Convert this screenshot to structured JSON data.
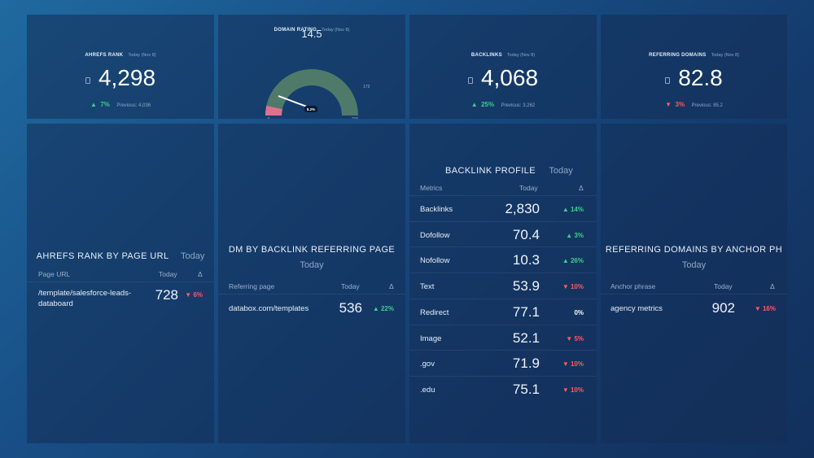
{
  "ahrefs_rank": {
    "title": "AHREFS RANK",
    "period": "Today (Nov 8)",
    "value": "4,298",
    "change": "7%",
    "change_direction": "up",
    "previous": "Previous: 4,036"
  },
  "domain_rating": {
    "title": "DOMAIN RATING",
    "period": "Today (Nov 8)",
    "value": "14.5",
    "gauge_min": "0",
    "gauge_max": "215",
    "gauge_mark": "173",
    "gauge_fill": 0.0674,
    "pointer_label": "8.2%"
  },
  "backlinks": {
    "title": "BACKLINKS",
    "period": "Today (Nov 8)",
    "value": "4,068",
    "change": "25%",
    "change_direction": "up",
    "previous": "Previous: 3,262"
  },
  "referring_domains": {
    "title": "REFERRING DOMAINS",
    "period": "Today (Nov 8)",
    "value": "82.8",
    "change": "3%",
    "change_direction": "down",
    "previous": "Previous: 85.2"
  },
  "rank_by_page": {
    "title": "AHREFS RANK BY PAGE URL",
    "period": "Today",
    "col1": "Page URL",
    "col2": "Today",
    "col3": "Δ",
    "rows": [
      {
        "label1": "/template/salesforce-leads-",
        "label2": "databoard",
        "value": "728",
        "change": "6%",
        "dir": "down"
      }
    ]
  },
  "dm_by_backlink": {
    "title": "DM BY BACKLINK REFERRING PAGE",
    "period": "Today",
    "col1": "Referring page",
    "col2": "Today",
    "col3": "Δ",
    "rows": [
      {
        "label": "databox.com/templates",
        "value": "536",
        "change": "22%",
        "dir": "up"
      }
    ]
  },
  "backlink_profile": {
    "title": "BACKLINK PROFILE",
    "period": "Today",
    "col1": "Metrics",
    "col2": "Today",
    "col3": "Δ",
    "rows": [
      {
        "label": "Backlinks",
        "value": "2,830",
        "change": "14%",
        "dir": "up"
      },
      {
        "label": "Dofollow",
        "value": "70.4",
        "change": "3%",
        "dir": "up"
      },
      {
        "label": "Nofollow",
        "value": "10.3",
        "change": "26%",
        "dir": "up"
      },
      {
        "label": "Text",
        "value": "53.9",
        "change": "10%",
        "dir": "down"
      },
      {
        "label": "Redirect",
        "value": "77.1",
        "change": "0%",
        "dir": "none"
      },
      {
        "label": "Image",
        "value": "52.1",
        "change": "5%",
        "dir": "down"
      },
      {
        "label": ".gov",
        "value": "71.9",
        "change": "10%",
        "dir": "down"
      },
      {
        "label": ".edu",
        "value": "75.1",
        "change": "10%",
        "dir": "down"
      }
    ]
  },
  "domains_by_anchor": {
    "title": "REFERRING DOMAINS BY ANCHOR PH",
    "period": "Today",
    "col1": "Anchor phrase",
    "col2": "Today",
    "col3": "Δ",
    "rows": [
      {
        "label": "agency metrics",
        "value": "902",
        "change": "16%",
        "dir": "down"
      }
    ]
  },
  "colors": {
    "up": "#3bd18a",
    "down": "#ff5b61",
    "gauge": "#4f7a6a",
    "gauge_fill": "#e0708e"
  }
}
